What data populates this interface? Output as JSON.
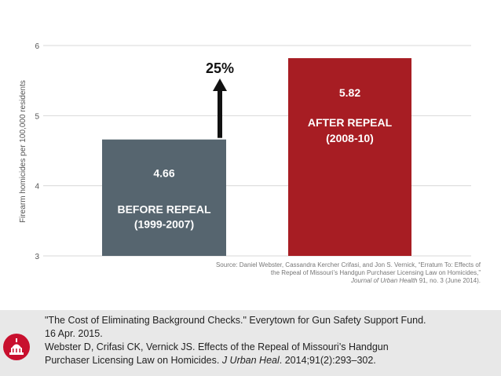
{
  "chart_data": {
    "type": "bar",
    "ylabel": "Firearm homicides per 100,000 residents",
    "ylim": [
      3,
      6
    ],
    "yticks": [
      "3",
      "4",
      "5",
      "6"
    ],
    "grid": true,
    "categories": [
      "BEFORE REPEAL (1999-2007)",
      "AFTER REPEAL (2008-10)"
    ],
    "bars": [
      {
        "value": 4.66,
        "value_label": "4.66",
        "line1": "BEFORE REPEAL",
        "line2": "(1999-2007)",
        "color": "#56656f"
      },
      {
        "value": 5.82,
        "value_label": "5.82",
        "line1": "AFTER REPEAL",
        "line2": "(2008-10)",
        "color": "#a71d23"
      }
    ],
    "annotation": {
      "text": "25%",
      "direction": "up",
      "color": "#111111"
    }
  },
  "source": {
    "line1": "Source: Daniel Webster, Cassandra Kercher Crifasi, and Jon S. Vernick, “Erratum To: Effects of",
    "line2": "the Repeal of Missouri’s Handgun Purchaser Licensing Law on Homicides,”",
    "line3_journal": "Journal of Urban Health",
    "line3_rest": " 91, no. 3 (June 2014)."
  },
  "citations": {
    "c1_line1": "\"The Cost of Eliminating Background Checks.\" Everytown for Gun Safety Support Fund.",
    "c1_line2": "16 Apr. 2015.",
    "c2_line1": "Webster D, Crifasi CK, Vernick JS. Effects of the Repeal of Missouri’s Handgun",
    "c2_line2_a": "Purchaser Licensing Law on Homicides. ",
    "c2_line2_journal": "J Urban Heal",
    "c2_line2_b": ". 2014;91(2):293–302."
  },
  "logo": {
    "icon": "capitol-building-icon",
    "color": "#c8102e"
  }
}
